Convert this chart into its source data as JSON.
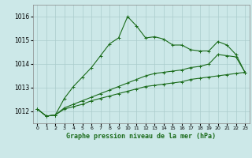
{
  "background_color": "#cce8e8",
  "grid_color": "#aacccc",
  "line_color": "#1a6b1a",
  "title": "Graphe pression niveau de la mer (hPa)",
  "xlabel_ticks": [
    0,
    1,
    2,
    3,
    4,
    5,
    6,
    7,
    8,
    9,
    10,
    11,
    12,
    13,
    14,
    15,
    16,
    17,
    18,
    19,
    20,
    21,
    22,
    23
  ],
  "ylim": [
    1011.5,
    1016.5
  ],
  "yticks": [
    1012,
    1013,
    1014,
    1015,
    1016
  ],
  "series1": [
    1012.1,
    1011.8,
    1011.85,
    1012.55,
    1013.05,
    1013.45,
    1013.85,
    1014.35,
    1014.85,
    1015.1,
    1016.0,
    1015.6,
    1015.1,
    1015.15,
    1015.05,
    1014.8,
    1014.8,
    1014.6,
    1014.55,
    1014.55,
    1014.95,
    1014.8,
    1014.4,
    1013.65
  ],
  "series2": [
    1012.1,
    1011.8,
    1011.85,
    1012.15,
    1012.3,
    1012.45,
    1012.6,
    1012.75,
    1012.9,
    1013.05,
    1013.2,
    1013.35,
    1013.5,
    1013.6,
    1013.65,
    1013.7,
    1013.75,
    1013.85,
    1013.9,
    1014.0,
    1014.4,
    1014.35,
    1014.3,
    1013.65
  ],
  "series3": [
    1012.1,
    1011.8,
    1011.85,
    1012.1,
    1012.2,
    1012.3,
    1012.45,
    1012.55,
    1012.65,
    1012.75,
    1012.85,
    1012.95,
    1013.05,
    1013.1,
    1013.15,
    1013.2,
    1013.25,
    1013.35,
    1013.4,
    1013.45,
    1013.5,
    1013.55,
    1013.6,
    1013.65
  ]
}
